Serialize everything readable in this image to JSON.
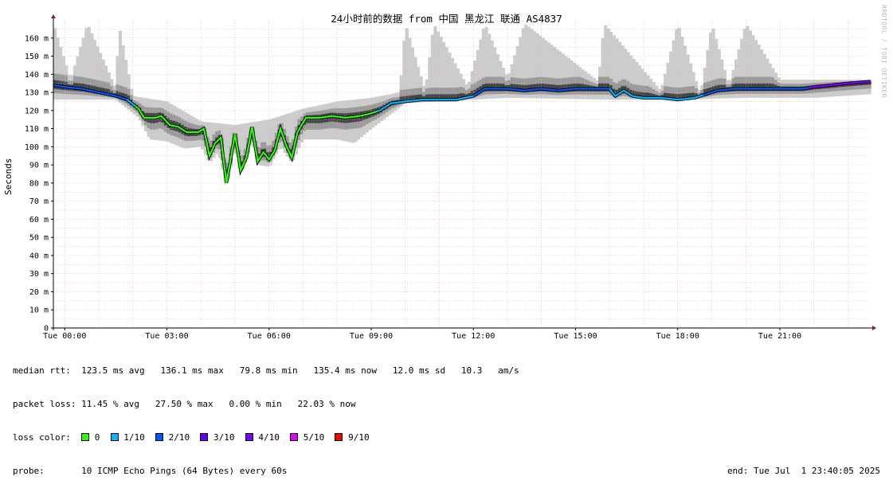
{
  "chart_data": {
    "type": "area",
    "title": "24小时前的数据 from 中国 黑龙江 联通 AS4837",
    "ylabel": "Seconds",
    "watermark": "RRDTOOL / TOBI OETIKER",
    "x_range": [
      "2025-06-30 23:40",
      "2025-07-01 23:40"
    ],
    "ylim": [
      0,
      170
    ],
    "y_ticks": [
      {
        "v": 0,
        "label": "0"
      },
      {
        "v": 10,
        "label": "10 m"
      },
      {
        "v": 20,
        "label": "20 m"
      },
      {
        "v": 30,
        "label": "30 m"
      },
      {
        "v": 40,
        "label": "40 m"
      },
      {
        "v": 50,
        "label": "50 m"
      },
      {
        "v": 60,
        "label": "60 m"
      },
      {
        "v": 70,
        "label": "70 m"
      },
      {
        "v": 80,
        "label": "80 m"
      },
      {
        "v": 90,
        "label": "90 m"
      },
      {
        "v": 100,
        "label": "100 m"
      },
      {
        "v": 110,
        "label": "110 m"
      },
      {
        "v": 120,
        "label": "120 m"
      },
      {
        "v": 130,
        "label": "130 m"
      },
      {
        "v": 140,
        "label": "140 m"
      },
      {
        "v": 150,
        "label": "150 m"
      },
      {
        "v": 160,
        "label": "160 m"
      }
    ],
    "x_ticks": [
      {
        "t": "2025-07-01 00:00",
        "label": "Tue 00:00"
      },
      {
        "t": "2025-07-01 03:00",
        "label": "Tue 03:00"
      },
      {
        "t": "2025-07-01 06:00",
        "label": "Tue 06:00"
      },
      {
        "t": "2025-07-01 09:00",
        "label": "Tue 09:00"
      },
      {
        "t": "2025-07-01 12:00",
        "label": "Tue 12:00"
      },
      {
        "t": "2025-07-01 15:00",
        "label": "Tue 15:00"
      },
      {
        "t": "2025-07-01 18:00",
        "label": "Tue 18:00"
      },
      {
        "t": "2025-07-01 21:00",
        "label": "Tue 21:00"
      }
    ],
    "grid": true,
    "median_ms": [
      {
        "t": "2025-06-30 23:40",
        "y": 134
      },
      {
        "t": "2025-07-01 00:00",
        "y": 133
      },
      {
        "t": "2025-07-01 00:30",
        "y": 132
      },
      {
        "t": "2025-07-01 01:00",
        "y": 130
      },
      {
        "t": "2025-07-01 01:30",
        "y": 128
      },
      {
        "t": "2025-07-01 01:50",
        "y": 126
      },
      {
        "t": "2025-07-01 02:10",
        "y": 121
      },
      {
        "t": "2025-07-01 02:20",
        "y": 116
      },
      {
        "t": "2025-07-01 02:40",
        "y": 116
      },
      {
        "t": "2025-07-01 02:50",
        "y": 117
      },
      {
        "t": "2025-07-01 03:05",
        "y": 112
      },
      {
        "t": "2025-07-01 03:20",
        "y": 111
      },
      {
        "t": "2025-07-01 03:35",
        "y": 108
      },
      {
        "t": "2025-07-01 03:55",
        "y": 108
      },
      {
        "t": "2025-07-01 04:05",
        "y": 110
      },
      {
        "t": "2025-07-01 04:15",
        "y": 95
      },
      {
        "t": "2025-07-01 04:25",
        "y": 102
      },
      {
        "t": "2025-07-01 04:35",
        "y": 105
      },
      {
        "t": "2025-07-01 04:45",
        "y": 80
      },
      {
        "t": "2025-07-01 05:00",
        "y": 107
      },
      {
        "t": "2025-07-01 05:10",
        "y": 87
      },
      {
        "t": "2025-07-01 05:20",
        "y": 94
      },
      {
        "t": "2025-07-01 05:30",
        "y": 111
      },
      {
        "t": "2025-07-01 05:40",
        "y": 92
      },
      {
        "t": "2025-07-01 05:50",
        "y": 97
      },
      {
        "t": "2025-07-01 06:00",
        "y": 93
      },
      {
        "t": "2025-07-01 06:10",
        "y": 98
      },
      {
        "t": "2025-07-01 06:20",
        "y": 110
      },
      {
        "t": "2025-07-01 06:30",
        "y": 101
      },
      {
        "t": "2025-07-01 06:40",
        "y": 94
      },
      {
        "t": "2025-07-01 06:50",
        "y": 108
      },
      {
        "t": "2025-07-01 07:05",
        "y": 116
      },
      {
        "t": "2025-07-01 07:30",
        "y": 116
      },
      {
        "t": "2025-07-01 07:50",
        "y": 117
      },
      {
        "t": "2025-07-01 08:15",
        "y": 116
      },
      {
        "t": "2025-07-01 08:40",
        "y": 117
      },
      {
        "t": "2025-07-01 08:55",
        "y": 118
      },
      {
        "t": "2025-07-01 09:15",
        "y": 120
      },
      {
        "t": "2025-07-01 09:35",
        "y": 124
      },
      {
        "t": "2025-07-01 10:00",
        "y": 125
      },
      {
        "t": "2025-07-01 10:30",
        "y": 126
      },
      {
        "t": "2025-07-01 11:00",
        "y": 126
      },
      {
        "t": "2025-07-01 11:30",
        "y": 126
      },
      {
        "t": "2025-07-01 12:00",
        "y": 128
      },
      {
        "t": "2025-07-01 12:20",
        "y": 132
      },
      {
        "t": "2025-07-01 13:00",
        "y": 132
      },
      {
        "t": "2025-07-01 13:30",
        "y": 131
      },
      {
        "t": "2025-07-01 14:00",
        "y": 132
      },
      {
        "t": "2025-07-01 14:30",
        "y": 131
      },
      {
        "t": "2025-07-01 15:00",
        "y": 132
      },
      {
        "t": "2025-07-01 15:30",
        "y": 132
      },
      {
        "t": "2025-07-01 16:00",
        "y": 132
      },
      {
        "t": "2025-07-01 16:10",
        "y": 128
      },
      {
        "t": "2025-07-01 16:25",
        "y": 131
      },
      {
        "t": "2025-07-01 16:40",
        "y": 128
      },
      {
        "t": "2025-07-01 17:00",
        "y": 127
      },
      {
        "t": "2025-07-01 17:30",
        "y": 127
      },
      {
        "t": "2025-07-01 18:00",
        "y": 126
      },
      {
        "t": "2025-07-01 18:30",
        "y": 127
      },
      {
        "t": "2025-07-01 18:50",
        "y": 129
      },
      {
        "t": "2025-07-01 19:10",
        "y": 131
      },
      {
        "t": "2025-07-01 19:40",
        "y": 132
      },
      {
        "t": "2025-07-01 20:10",
        "y": 132
      },
      {
        "t": "2025-07-01 20:40",
        "y": 132
      },
      {
        "t": "2025-07-01 21:10",
        "y": 132
      },
      {
        "t": "2025-07-01 21:40",
        "y": 132
      },
      {
        "t": "2025-07-01 22:00",
        "y": 133
      },
      {
        "t": "2025-07-01 22:30",
        "y": 134
      },
      {
        "t": "2025-07-01 23:00",
        "y": 135
      },
      {
        "t": "2025-07-01 23:40",
        "y": 136
      }
    ],
    "max_ms": [
      {
        "t": "2025-06-30 23:40",
        "y": 168
      },
      {
        "t": "2025-07-01 00:10",
        "y": 137
      },
      {
        "t": "2025-07-01 00:40",
        "y": 168
      },
      {
        "t": "2025-07-01 01:30",
        "y": 132
      },
      {
        "t": "2025-07-01 01:35",
        "y": 168
      },
      {
        "t": "2025-07-01 02:00",
        "y": 128
      },
      {
        "t": "2025-07-01 03:00",
        "y": 125
      },
      {
        "t": "2025-07-01 04:00",
        "y": 114
      },
      {
        "t": "2025-07-01 05:00",
        "y": 112
      },
      {
        "t": "2025-07-01 06:00",
        "y": 115
      },
      {
        "t": "2025-07-01 07:00",
        "y": 121
      },
      {
        "t": "2025-07-01 08:00",
        "y": 125
      },
      {
        "t": "2025-07-01 09:00",
        "y": 127
      },
      {
        "t": "2025-07-01 09:50",
        "y": 130
      },
      {
        "t": "2025-07-01 10:00",
        "y": 168
      },
      {
        "t": "2025-07-01 10:35",
        "y": 131
      },
      {
        "t": "2025-07-01 10:50",
        "y": 168
      },
      {
        "t": "2025-07-01 11:50",
        "y": 133
      },
      {
        "t": "2025-07-01 12:20",
        "y": 168
      },
      {
        "t": "2025-07-01 13:00",
        "y": 138
      },
      {
        "t": "2025-07-01 13:30",
        "y": 168
      },
      {
        "t": "2025-07-01 15:40",
        "y": 136
      },
      {
        "t": "2025-07-01 15:50",
        "y": 168
      },
      {
        "t": "2025-07-01 17:30",
        "y": 131
      },
      {
        "t": "2025-07-01 18:00",
        "y": 168
      },
      {
        "t": "2025-07-01 18:40",
        "y": 129
      },
      {
        "t": "2025-07-01 19:00",
        "y": 168
      },
      {
        "t": "2025-07-01 19:30",
        "y": 134
      },
      {
        "t": "2025-07-01 20:00",
        "y": 168
      },
      {
        "t": "2025-07-01 21:00",
        "y": 137
      },
      {
        "t": "2025-07-01 22:00",
        "y": 137
      },
      {
        "t": "2025-07-01 23:40",
        "y": 137
      }
    ],
    "min_ms": [
      {
        "t": "2025-06-30 23:40",
        "y": 126
      },
      {
        "t": "2025-07-01 01:30",
        "y": 126
      },
      {
        "t": "2025-07-01 02:10",
        "y": 116
      },
      {
        "t": "2025-07-01 02:30",
        "y": 104
      },
      {
        "t": "2025-07-01 03:00",
        "y": 103
      },
      {
        "t": "2025-07-01 03:30",
        "y": 99
      },
      {
        "t": "2025-07-01 04:00",
        "y": 100
      },
      {
        "t": "2025-07-01 04:15",
        "y": 91
      },
      {
        "t": "2025-07-01 04:30",
        "y": 97
      },
      {
        "t": "2025-07-01 04:45",
        "y": 78
      },
      {
        "t": "2025-07-01 05:00",
        "y": 100
      },
      {
        "t": "2025-07-01 05:10",
        "y": 84
      },
      {
        "t": "2025-07-01 05:30",
        "y": 103
      },
      {
        "t": "2025-07-01 05:40",
        "y": 90
      },
      {
        "t": "2025-07-01 06:00",
        "y": 89
      },
      {
        "t": "2025-07-01 06:20",
        "y": 100
      },
      {
        "t": "2025-07-01 06:40",
        "y": 91
      },
      {
        "t": "2025-07-01 07:00",
        "y": 104
      },
      {
        "t": "2025-07-01 08:00",
        "y": 104
      },
      {
        "t": "2025-07-01 08:30",
        "y": 102
      },
      {
        "t": "2025-07-01 09:00",
        "y": 110
      },
      {
        "t": "2025-07-01 10:00",
        "y": 124
      },
      {
        "t": "2025-07-01 11:00",
        "y": 125
      },
      {
        "t": "2025-07-01 12:00",
        "y": 126
      },
      {
        "t": "2025-07-01 13:00",
        "y": 127
      },
      {
        "t": "2025-07-01 16:00",
        "y": 126
      },
      {
        "t": "2025-07-01 18:00",
        "y": 126
      },
      {
        "t": "2025-07-01 20:00",
        "y": 127
      },
      {
        "t": "2025-07-01 22:00",
        "y": 127
      },
      {
        "t": "2025-07-01 23:40",
        "y": 129
      }
    ],
    "loss_segments": [
      {
        "from": "2025-06-30 23:40",
        "to": "2025-07-01 01:50",
        "loss": "2/10"
      },
      {
        "from": "2025-07-01 01:50",
        "to": "2025-07-01 02:05",
        "loss": "1/10"
      },
      {
        "from": "2025-07-01 02:05",
        "to": "2025-07-01 09:10",
        "loss": "0"
      },
      {
        "from": "2025-07-01 09:10",
        "to": "2025-07-01 12:00",
        "loss": "1/10"
      },
      {
        "from": "2025-07-01 12:00",
        "to": "2025-07-01 16:00",
        "loss": "2/10"
      },
      {
        "from": "2025-07-01 16:00",
        "to": "2025-07-01 18:45",
        "loss": "1/10"
      },
      {
        "from": "2025-07-01 18:45",
        "to": "2025-07-01 21:50",
        "loss": "2/10"
      },
      {
        "from": "2025-07-01 21:50",
        "to": "2025-07-01 23:40",
        "loss": "4/10"
      }
    ],
    "colors": {
      "grid": "#e6a8a8",
      "axis": "#000000",
      "arrow": "#8b1e1e",
      "smoke_light": "#cccccc",
      "smoke_mid": "#9a9a9a",
      "smoke_dark": "#444444"
    }
  },
  "legend": {
    "median_rtt_label": "median rtt:",
    "median_rtt_values": "123.5 ms avg   136.1 ms max   79.8 ms min   135.4 ms now   12.0 ms sd   10.3   am/s",
    "packet_loss_label": "packet loss:",
    "packet_loss_values": "11.45 % avg   27.50 % max   0.00 % min   22.03 % now",
    "loss_color_label": "loss color:",
    "loss_colors": [
      {
        "label": "0",
        "color": "#26ff00"
      },
      {
        "label": "1/10",
        "color": "#00b8ff"
      },
      {
        "label": "2/10",
        "color": "#0059ff"
      },
      {
        "label": "3/10",
        "color": "#5e00ff"
      },
      {
        "label": "4/10",
        "color": "#7e00ff"
      },
      {
        "label": "5/10",
        "color": "#dd00ff"
      },
      {
        "label": "9/10",
        "color": "#ff0000"
      }
    ],
    "probe_label": "probe:",
    "probe_value": "10 ICMP Echo Pings (64 Bytes) every 60s",
    "end_text": "end: Tue Jul  1 23:40:05 2025"
  }
}
